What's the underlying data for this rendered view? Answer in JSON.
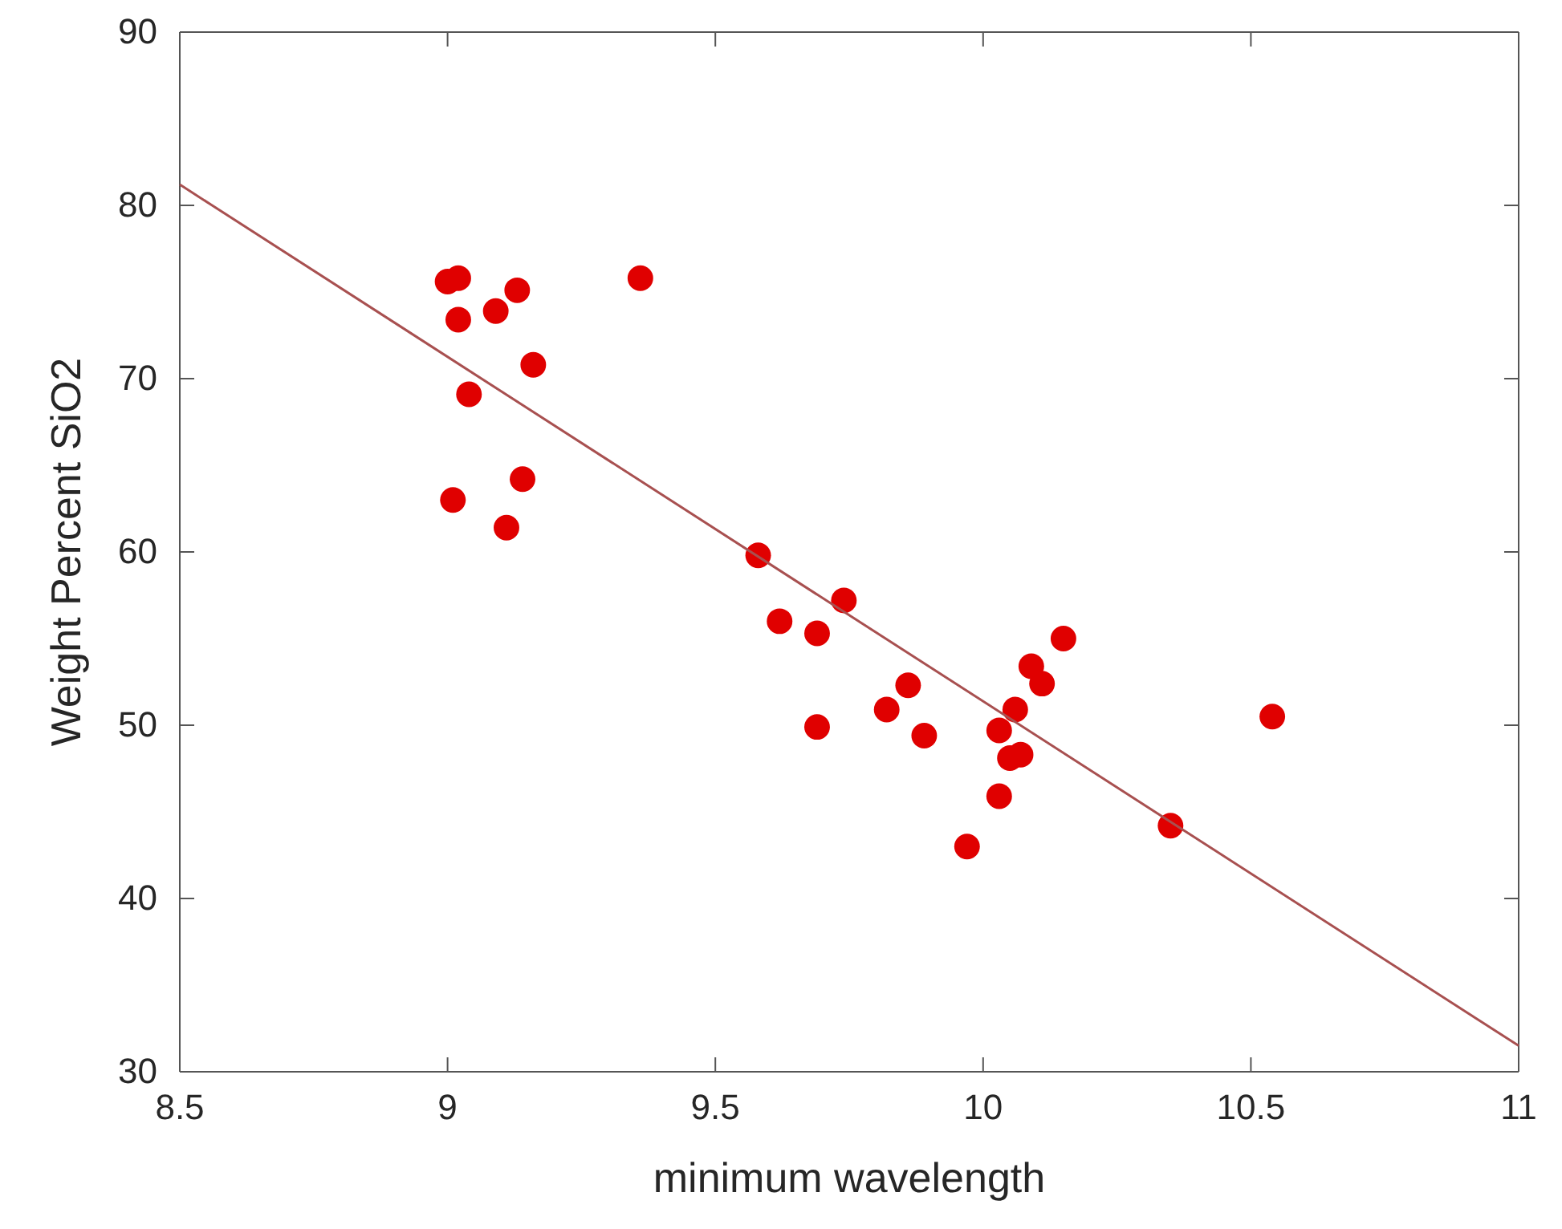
{
  "chart_data": {
    "type": "scatter",
    "xlabel": "minimum wavelength",
    "ylabel": "Weight Percent SiO2",
    "xlim": [
      8.5,
      11
    ],
    "xticks": [
      8.5,
      9,
      9.5,
      10,
      10.5,
      11
    ],
    "ylim": [
      30,
      90
    ],
    "yticks": [
      30,
      40,
      50,
      60,
      70,
      80,
      90
    ],
    "grid": false,
    "series": [
      {
        "marker": "circle",
        "color": "#e00000",
        "x": [
          9.0,
          9.02,
          9.13,
          9.09,
          9.02,
          9.36,
          9.16,
          9.04,
          9.14,
          9.01,
          9.11,
          9.58,
          9.74,
          9.62,
          9.69,
          10.15,
          10.09,
          10.11,
          9.86,
          9.82,
          10.06,
          9.69,
          9.89,
          10.03,
          10.05,
          10.07,
          10.03,
          9.97,
          10.54,
          10.35
        ],
        "values": [
          75.6,
          75.8,
          75.1,
          73.9,
          73.4,
          75.8,
          70.8,
          69.1,
          64.2,
          63.0,
          61.4,
          59.8,
          57.2,
          56.0,
          55.3,
          55.0,
          53.4,
          52.4,
          52.3,
          50.9,
          50.9,
          49.9,
          49.4,
          49.7,
          48.1,
          48.3,
          45.9,
          43.0,
          50.5,
          44.2
        ]
      },
      {
        "type": "line",
        "marker": "none",
        "line_style": "solid",
        "color": "#a85050",
        "x": [
          8.5,
          11
        ],
        "values": [
          81.2,
          31.5
        ]
      }
    ]
  }
}
